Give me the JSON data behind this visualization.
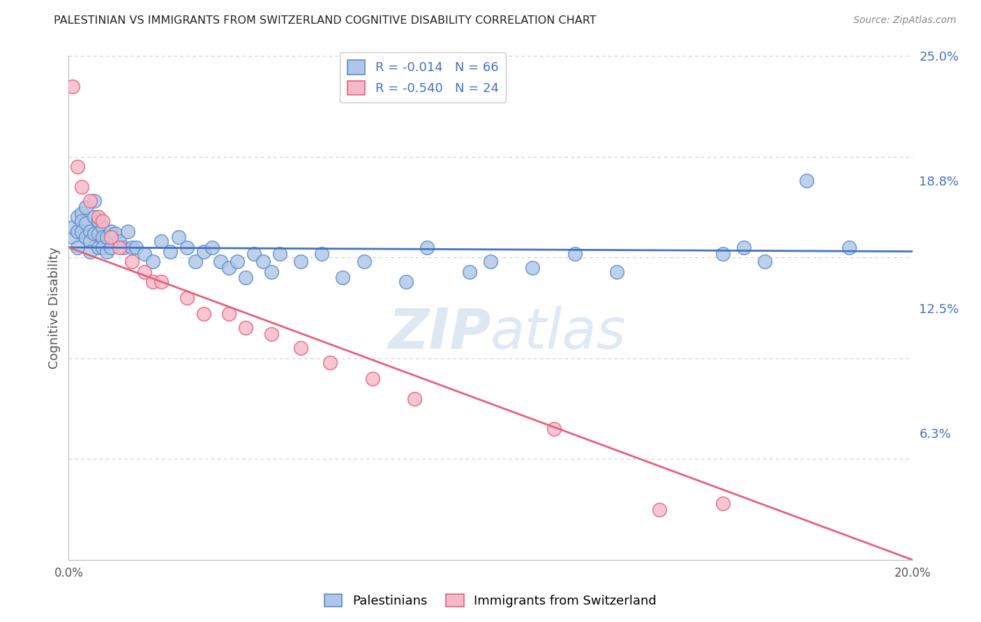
{
  "title": "PALESTINIAN VS IMMIGRANTS FROM SWITZERLAND COGNITIVE DISABILITY CORRELATION CHART",
  "source": "Source: ZipAtlas.com",
  "ylabel": "Cognitive Disability",
  "blue_label": "Palestinians",
  "pink_label": "Immigrants from Switzerland",
  "blue_R": -0.014,
  "blue_N": 66,
  "pink_R": -0.54,
  "pink_N": 24,
  "blue_color": "#aec6e8",
  "blue_edge_color": "#5b8dc8",
  "pink_color": "#f5b8c8",
  "pink_edge_color": "#e8607a",
  "blue_line_color": "#4472c4",
  "pink_line_color": "#e8607a",
  "background_color": "#ffffff",
  "grid_color": "#cccccc",
  "title_color": "#222222",
  "axis_label_color": "#555555",
  "right_tick_color": "#4472c4",
  "watermark_color": "#d0dff0",
  "x_min": 0.0,
  "x_max": 0.2,
  "y_min": 0.0,
  "y_max": 0.25,
  "y_ticks": [
    0.063,
    0.125,
    0.188,
    0.25
  ],
  "y_tick_labels": [
    "6.3%",
    "12.5%",
    "18.8%",
    "25.0%"
  ],
  "x_ticks": [
    0.0,
    0.025,
    0.05,
    0.075,
    0.1,
    0.125,
    0.15,
    0.175,
    0.2
  ],
  "x_tick_labels": [
    "0.0%",
    "",
    "",
    "",
    "",
    "",
    "",
    "",
    "20.0%"
  ],
  "blue_line_y0": 0.155,
  "blue_line_y1": 0.153,
  "pink_line_y0": 0.155,
  "pink_line_y1": 0.0,
  "blue_x": [
    0.001,
    0.001,
    0.002,
    0.002,
    0.002,
    0.003,
    0.003,
    0.003,
    0.004,
    0.004,
    0.004,
    0.005,
    0.005,
    0.005,
    0.006,
    0.006,
    0.006,
    0.007,
    0.007,
    0.007,
    0.008,
    0.008,
    0.008,
    0.009,
    0.009,
    0.01,
    0.01,
    0.011,
    0.012,
    0.013,
    0.014,
    0.015,
    0.016,
    0.018,
    0.02,
    0.022,
    0.024,
    0.026,
    0.028,
    0.03,
    0.032,
    0.034,
    0.036,
    0.038,
    0.04,
    0.042,
    0.044,
    0.046,
    0.048,
    0.05,
    0.055,
    0.06,
    0.065,
    0.07,
    0.08,
    0.085,
    0.095,
    0.1,
    0.11,
    0.12,
    0.13,
    0.155,
    0.16,
    0.165,
    0.175,
    0.185
  ],
  "blue_y": [
    0.16,
    0.165,
    0.17,
    0.163,
    0.155,
    0.172,
    0.168,
    0.163,
    0.175,
    0.167,
    0.16,
    0.163,
    0.158,
    0.153,
    0.178,
    0.17,
    0.162,
    0.168,
    0.162,
    0.155,
    0.165,
    0.16,
    0.155,
    0.16,
    0.153,
    0.163,
    0.155,
    0.162,
    0.158,
    0.155,
    0.163,
    0.155,
    0.155,
    0.152,
    0.148,
    0.158,
    0.153,
    0.16,
    0.155,
    0.148,
    0.153,
    0.155,
    0.148,
    0.145,
    0.148,
    0.14,
    0.152,
    0.148,
    0.143,
    0.152,
    0.148,
    0.152,
    0.14,
    0.148,
    0.138,
    0.155,
    0.143,
    0.148,
    0.145,
    0.152,
    0.143,
    0.152,
    0.155,
    0.148,
    0.188,
    0.155
  ],
  "pink_x": [
    0.001,
    0.002,
    0.003,
    0.005,
    0.007,
    0.008,
    0.01,
    0.012,
    0.015,
    0.018,
    0.02,
    0.022,
    0.028,
    0.032,
    0.038,
    0.042,
    0.048,
    0.055,
    0.062,
    0.072,
    0.082,
    0.115,
    0.14,
    0.155
  ],
  "pink_y": [
    0.235,
    0.195,
    0.185,
    0.178,
    0.17,
    0.168,
    0.16,
    0.155,
    0.148,
    0.143,
    0.138,
    0.138,
    0.13,
    0.122,
    0.122,
    0.115,
    0.112,
    0.105,
    0.098,
    0.09,
    0.08,
    0.065,
    0.025,
    0.028
  ]
}
